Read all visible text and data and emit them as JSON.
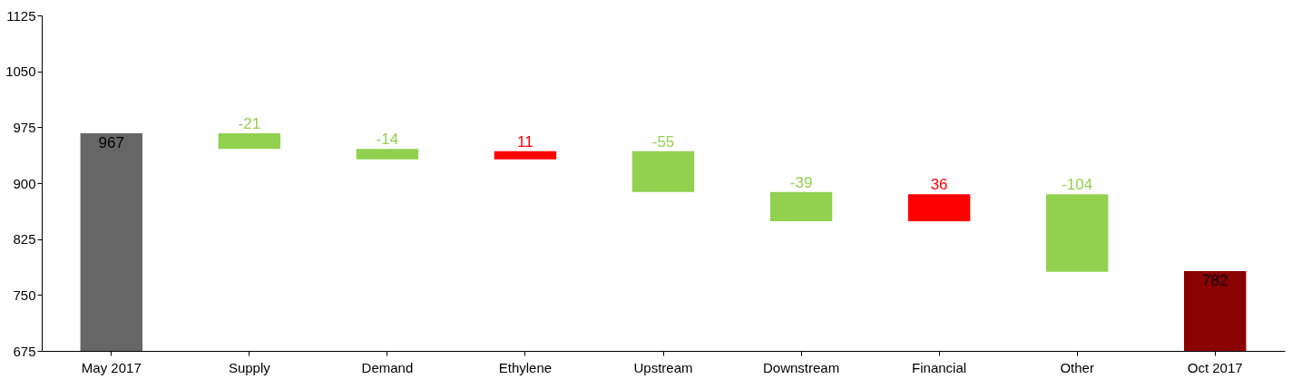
{
  "chart_data": {
    "type": "bar",
    "categories": [
      "May 2017",
      "Supply",
      "Demand",
      "Ethylene",
      "Upstream",
      "Downstream",
      "Financial",
      "Other",
      "Oct 2017"
    ],
    "values": [
      967,
      -21,
      -14,
      11,
      -55,
      -39,
      36,
      -104,
      782
    ],
    "base": [
      null,
      967,
      946,
      932,
      943,
      888,
      849,
      885,
      null
    ],
    "colors": [
      "#666666",
      "#92d050",
      "#92d050",
      "#ff0000",
      "#92d050",
      "#92d050",
      "#ff0000",
      "#92d050",
      "#8b0000"
    ],
    "ylim": [
      675,
      1125
    ],
    "yticks": [
      675,
      750,
      825,
      900,
      975,
      1050,
      1125
    ],
    "data_labels": true,
    "grid": false
  }
}
